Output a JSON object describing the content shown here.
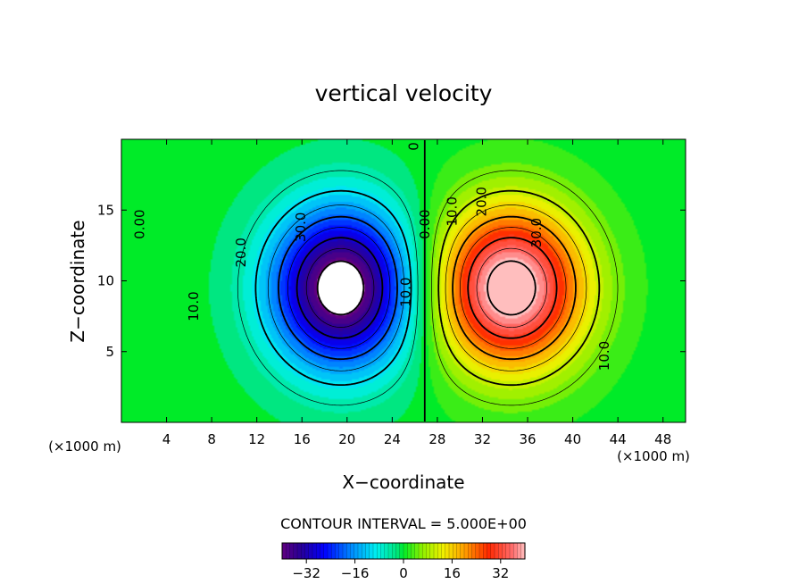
{
  "chart_data": {
    "type": "heatmap",
    "subtype": "filled contour plot with contour lines",
    "title": "vertical velocity",
    "xlabel": "X−coordinate",
    "ylabel": "Z−coordinate",
    "x_unit_left": "(×1000 m)",
    "x_unit_right": "(×1000 m)",
    "xlim": [
      0,
      50
    ],
    "ylim": [
      0,
      20
    ],
    "xticks": [
      4,
      8,
      12,
      16,
      20,
      24,
      28,
      32,
      36,
      40,
      44,
      48
    ],
    "yticks": [
      5,
      10,
      15
    ],
    "contour_interval_text": "CONTOUR INTERVAL = 5.000E+00",
    "contour_interval": 5,
    "colorbar": {
      "range": [
        -40,
        40
      ],
      "ticks": [
        -32,
        -16,
        0,
        16,
        32
      ],
      "tick_labels": [
        "−32",
        "−16",
        "0",
        "16",
        "32"
      ],
      "colormap": "rainbow (purple-blue-cyan-green-yellow-red-pink)"
    },
    "field_features": [
      {
        "name": "downdraft",
        "center_x": 19.5,
        "center_z": 9.5,
        "peak_value": -40,
        "sign": "negative"
      },
      {
        "name": "updraft",
        "center_x": 34.5,
        "center_z": 9.5,
        "peak_value": 40,
        "sign": "positive"
      }
    ],
    "contour_labels": [
      {
        "text": "0.00",
        "x": 2.0,
        "z": 14.0
      },
      {
        "text": "10.0",
        "x": 6.8,
        "z": 8.2
      },
      {
        "text": "20.0",
        "x": 11.0,
        "z": 12.0
      },
      {
        "text": "30.0",
        "x": 16.3,
        "z": 13.8
      },
      {
        "text": "10.0",
        "x": 25.6,
        "z": 9.2
      },
      {
        "text": "0",
        "x": 26.3,
        "z": 19.5
      },
      {
        "text": "0.00",
        "x": 27.3,
        "z": 14.0
      },
      {
        "text": "10.0",
        "x": 29.7,
        "z": 14.9
      },
      {
        "text": "20.0",
        "x": 32.3,
        "z": 15.6
      },
      {
        "text": "30.0",
        "x": 37.2,
        "z": 13.4
      },
      {
        "text": "10.0",
        "x": 43.2,
        "z": 4.7
      }
    ],
    "grid": false,
    "legend": "colorbar at bottom center"
  }
}
